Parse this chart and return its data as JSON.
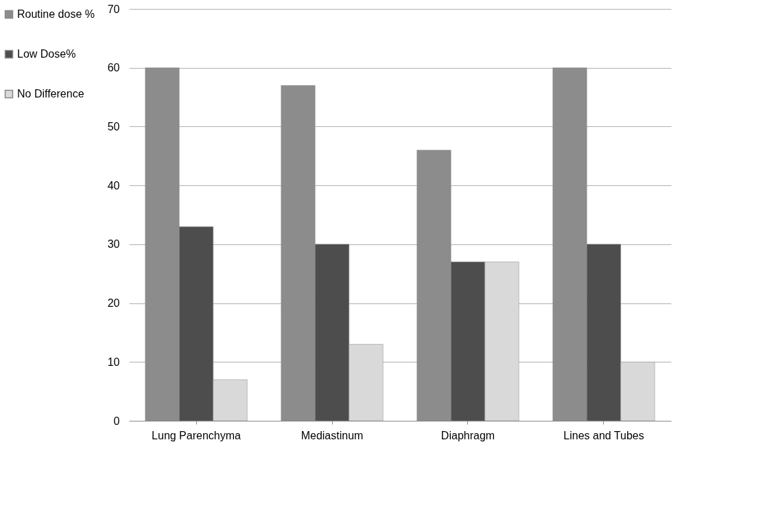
{
  "chart_data": {
    "type": "bar",
    "categories": [
      "Lung Parenchyma",
      "Mediastinum",
      "Diaphragm",
      "Lines and Tubes"
    ],
    "series": [
      {
        "name": "Routine dose %",
        "color": "#8c8c8c",
        "values": [
          60,
          57,
          46,
          60
        ]
      },
      {
        "name": "Low Dose%",
        "color": "#4d4d4d",
        "values": [
          33,
          30,
          27,
          30
        ]
      },
      {
        "name": "No Difference",
        "color": "#d9d9d9",
        "values": [
          7,
          13,
          27,
          10
        ]
      }
    ],
    "ylim": [
      0,
      70
    ],
    "yticks": [
      0,
      10,
      20,
      30,
      40,
      50,
      60,
      70
    ],
    "grid": "y",
    "legend": "left"
  }
}
